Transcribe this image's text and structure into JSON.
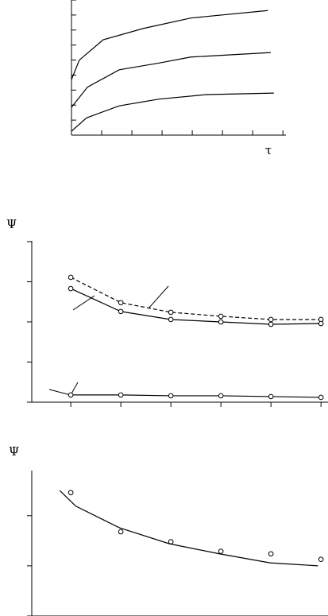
{
  "chart_data": [
    {
      "type": "line",
      "x_label": "τ",
      "xlim": [
        0,
        7.1
      ],
      "ylim": [
        0,
        9
      ],
      "xticks": [
        0,
        1,
        2,
        3,
        4,
        5,
        6,
        7
      ],
      "yticks": [
        0,
        1,
        2,
        3,
        4,
        5,
        6,
        7,
        8,
        9
      ],
      "tick_dir": "in",
      "series": [
        {
          "color": "#000000",
          "x": [
            0,
            0.26,
            1.05,
            2.37,
            3.95,
            6.5
          ],
          "values": [
            3.7,
            5,
            6.35,
            7.1,
            7.8,
            8.3
          ]
        },
        {
          "color": "#000000",
          "x": [
            0,
            0.53,
            1.58,
            2.9,
            3.95,
            6.6
          ],
          "values": [
            1.85,
            3.2,
            4.35,
            4.8,
            5.2,
            5.5
          ]
        },
        {
          "color": "#000000",
          "x": [
            0,
            0.5,
            1.58,
            2.9,
            4.47,
            6.7
          ],
          "values": [
            0.26,
            1.15,
            1.95,
            2.4,
            2.7,
            2.8
          ]
        }
      ]
    },
    {
      "type": "line",
      "y_label": "Ψ",
      "xlim": [
        -0.78,
        5.14
      ],
      "ylim": [
        0,
        4.02
      ],
      "xticks": [
        0,
        1,
        2,
        3,
        4,
        5
      ],
      "yticks": [
        0,
        1,
        2,
        3,
        4
      ],
      "tick_dir": "out",
      "series": [
        {
          "color": "#000000",
          "dash": true,
          "marker": true,
          "x": [
            0,
            1,
            2,
            3,
            4,
            5
          ],
          "values": [
            3.11,
            2.48,
            2.24,
            2.14,
            2.06,
            2.06
          ]
        },
        {
          "color": "#000000",
          "marker": true,
          "x": [
            0,
            1,
            2,
            3,
            4,
            5
          ],
          "values": [
            2.83,
            2.26,
            2.06,
            2.0,
            1.94,
            1.96
          ]
        },
        {
          "color": "#000000",
          "marker": true,
          "x": [
            0,
            1,
            2,
            3,
            4,
            5
          ],
          "values": [
            0.18,
            0.18,
            0.16,
            0.16,
            0.14,
            0.12
          ]
        }
      ]
    },
    {
      "type": "line",
      "y_label": "Ψ",
      "xlim": [
        -0.78,
        5.14
      ],
      "ylim": [
        0,
        2.9
      ],
      "xticks": [
        0,
        1,
        2,
        3,
        4,
        5
      ],
      "yticks": [
        0,
        1,
        2
      ],
      "tick_dir": "out",
      "series": [
        {
          "color": "#000000",
          "marker": true,
          "line": false,
          "x": [
            0,
            1,
            2,
            3,
            4,
            5
          ],
          "values": [
            2.46,
            1.68,
            1.48,
            1.29,
            1.24,
            1.13
          ]
        },
        {
          "color": "#000000",
          "x": [
            -0.22,
            0.1,
            0.97,
            1.97,
            2.97,
            3.98,
            4.94
          ],
          "values": [
            2.5,
            2.19,
            1.76,
            1.44,
            1.24,
            1.06,
            1.0
          ]
        }
      ]
    }
  ]
}
